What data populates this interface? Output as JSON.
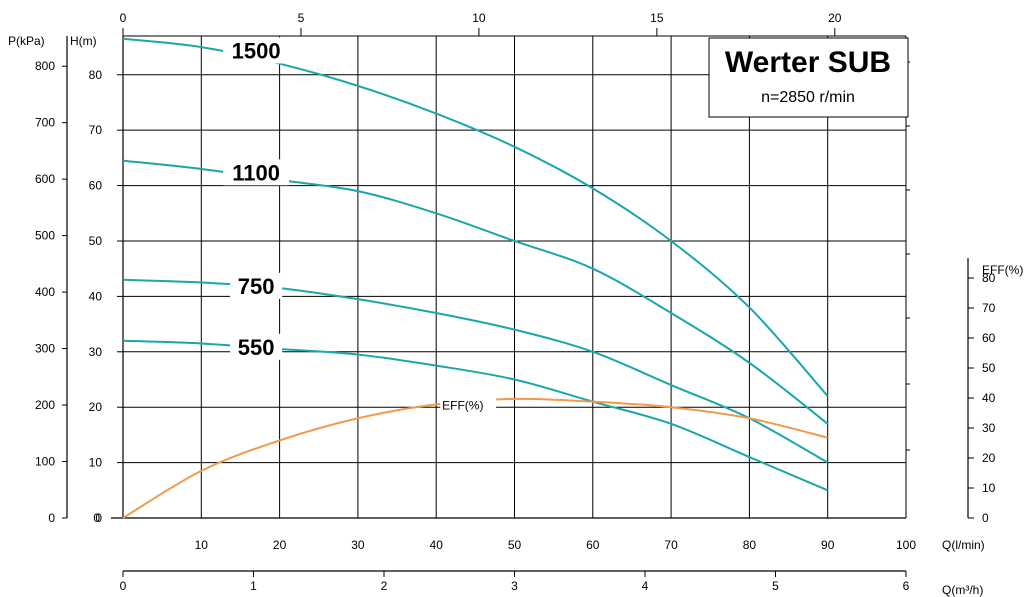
{
  "chart_data": {
    "type": "line",
    "title": "Werter SUB",
    "subtitle": "n=2850 r/min",
    "x_axis": {
      "label": "Q(l/min)",
      "range": [
        0,
        100
      ],
      "ticks": [
        10,
        20,
        30,
        40,
        50,
        60,
        70,
        80,
        90,
        100
      ]
    },
    "x_axis_secondary_bottom": {
      "label": "Q(m³/h)",
      "range": [
        0,
        6
      ],
      "ticks": [
        0,
        1,
        2,
        3,
        4,
        5,
        6
      ]
    },
    "x_axis_secondary_top": {
      "label": "",
      "range": [
        0,
        22
      ],
      "ticks": [
        0,
        5,
        10,
        15,
        20
      ]
    },
    "y_axis_head": {
      "label": "H(m)",
      "range": [
        0,
        87
      ],
      "ticks": [
        0,
        10,
        20,
        30,
        40,
        50,
        60,
        70,
        80
      ]
    },
    "y_axis_pressure": {
      "label": "P(kPa)",
      "ticks": [
        0,
        100,
        200,
        300,
        400,
        500,
        600,
        700,
        800
      ]
    },
    "y_axis_efficiency": {
      "label": "EFF(%)",
      "range": [
        0,
        87
      ],
      "ticks": [
        0,
        10,
        20,
        30,
        40,
        50,
        60,
        70,
        80
      ]
    },
    "grid": true,
    "series": [
      {
        "name": "1500",
        "x": [
          0,
          10,
          20,
          30,
          40,
          50,
          60,
          70,
          80,
          90
        ],
        "y": [
          86.5,
          85,
          82,
          78,
          73,
          67,
          59.5,
          50,
          38,
          22
        ]
      },
      {
        "name": "1100",
        "x": [
          0,
          10,
          20,
          30,
          40,
          50,
          60,
          70,
          80,
          90
        ],
        "y": [
          64.5,
          63,
          61,
          59,
          55,
          50,
          45,
          37,
          28,
          17
        ]
      },
      {
        "name": "750",
        "x": [
          0,
          10,
          20,
          30,
          40,
          50,
          60,
          70,
          80,
          90
        ],
        "y": [
          43,
          42.5,
          41.5,
          39.5,
          37,
          34,
          30,
          24,
          18,
          10
        ]
      },
      {
        "name": "550",
        "x": [
          0,
          10,
          20,
          30,
          40,
          50,
          60,
          70,
          80,
          90
        ],
        "y": [
          32,
          31.5,
          30.5,
          29.5,
          27.5,
          25,
          21,
          17,
          11,
          5
        ]
      },
      {
        "name": "EFF(%)",
        "axis": "efficiency",
        "x": [
          0,
          10,
          20,
          30,
          40,
          50,
          60,
          70,
          80,
          90
        ],
        "y": [
          0,
          8.5,
          14,
          18,
          20.5,
          21.5,
          21,
          20,
          18,
          14.5
        ]
      }
    ],
    "colors": {
      "head_curves": "#1aa7a8",
      "efficiency_curve": "#f29a4a",
      "grid": "#000000"
    }
  }
}
